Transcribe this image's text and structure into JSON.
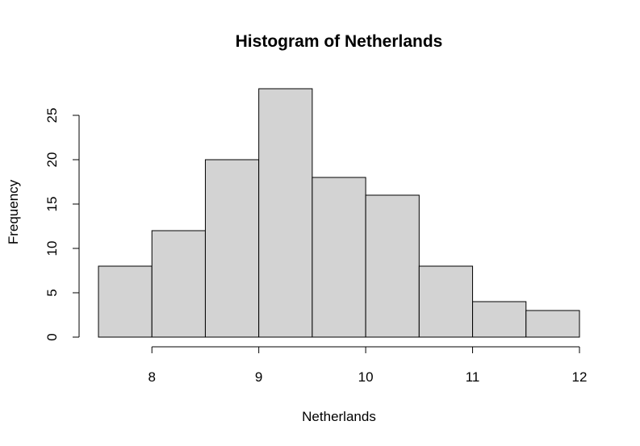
{
  "chart_data": {
    "type": "bar",
    "title": "Histogram of Netherlands",
    "xlabel": "Netherlands",
    "ylabel": "Frequency",
    "bins": [
      {
        "start": 7.5,
        "end": 8.0,
        "count": 8
      },
      {
        "start": 8.0,
        "end": 8.5,
        "count": 12
      },
      {
        "start": 8.5,
        "end": 9.0,
        "count": 20
      },
      {
        "start": 9.0,
        "end": 9.5,
        "count": 28
      },
      {
        "start": 9.5,
        "end": 10.0,
        "count": 18
      },
      {
        "start": 10.0,
        "end": 10.5,
        "count": 16
      },
      {
        "start": 10.5,
        "end": 11.0,
        "count": 8
      },
      {
        "start": 11.0,
        "end": 11.5,
        "count": 4
      },
      {
        "start": 11.5,
        "end": 12.0,
        "count": 3
      }
    ],
    "xticks": [
      8,
      9,
      10,
      11,
      12
    ],
    "yticks": [
      0,
      5,
      10,
      15,
      20,
      25
    ],
    "xlim": [
      7.5,
      12
    ],
    "ylim": [
      0,
      28
    ],
    "bar_color": "#d3d3d3",
    "grid": false
  }
}
